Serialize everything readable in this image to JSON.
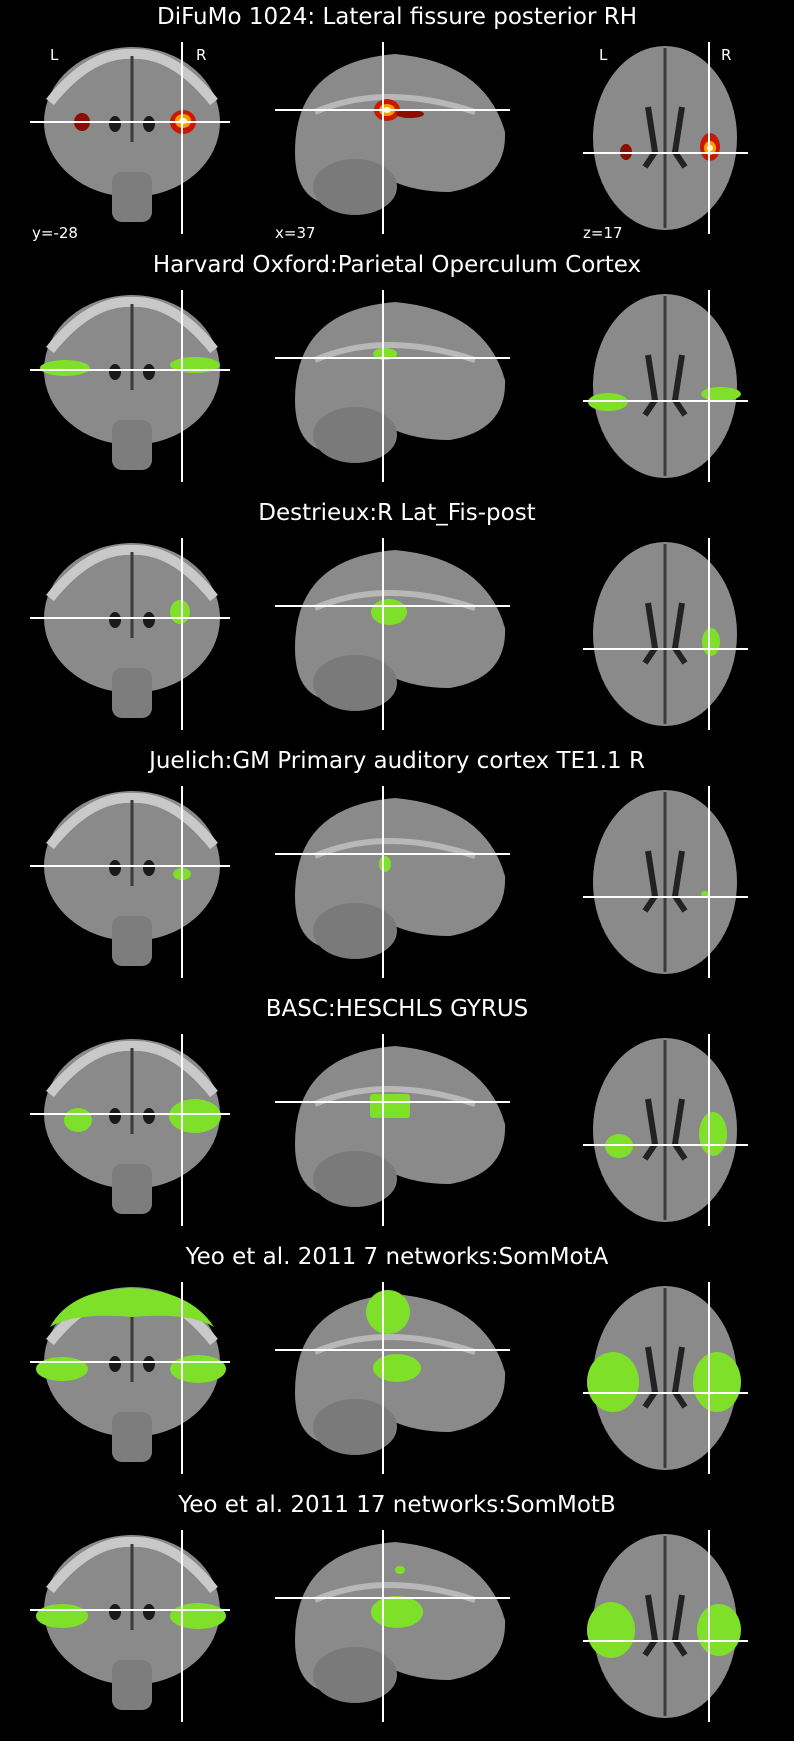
{
  "orientation": {
    "left": "L",
    "right": "R"
  },
  "coords": {
    "coronal": "y=-28",
    "sagittal": "x=37",
    "axial": "z=17"
  },
  "colors": {
    "background": "#000000",
    "overlay_green": "#7fe02a",
    "crosshair": "#ffffff"
  },
  "rows": [
    {
      "title": "DiFuMo 1024: Lateral fissure posterior RH",
      "overlay": "hot-colormap"
    },
    {
      "title": "Harvard Oxford:Parietal Operculum Cortex",
      "overlay": "green"
    },
    {
      "title": "Destrieux:R Lat_Fis-post",
      "overlay": "green"
    },
    {
      "title": "Juelich:GM Primary auditory cortex TE1.1 R",
      "overlay": "green"
    },
    {
      "title": "BASC:HESCHLS GYRUS",
      "overlay": "green"
    },
    {
      "title": "Yeo et al. 2011 7 networks:SomMotA",
      "overlay": "green"
    },
    {
      "title": "Yeo et al. 2011 17 networks:SomMotB",
      "overlay": "green"
    }
  ]
}
